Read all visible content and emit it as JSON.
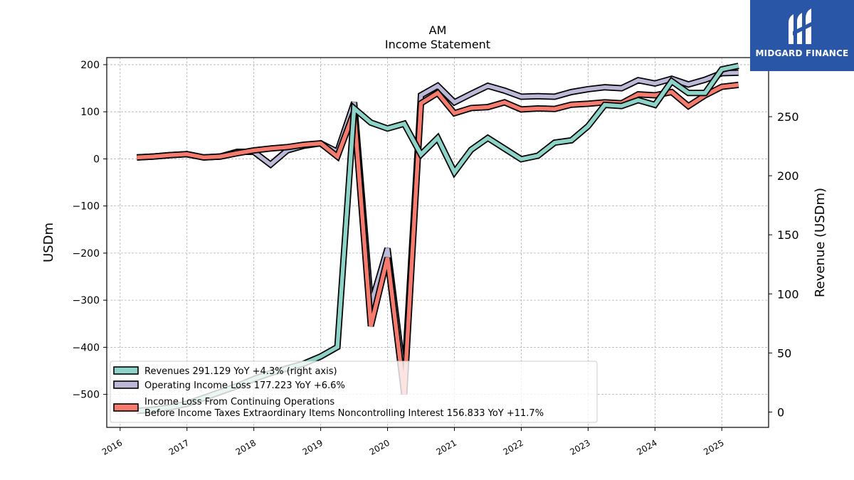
{
  "header": {
    "ticker": "AM",
    "subtitle": "Income Statement"
  },
  "logo": {
    "text": "MIDGARD FINANCE",
    "background": "#2a56a8"
  },
  "chart_data": {
    "type": "line",
    "grid": true,
    "legend_position": "bottom-left",
    "ylabel_left": "USDm",
    "ylabel_right": "Revenue (USDm)",
    "ylim_left": [
      -570,
      215
    ],
    "ylim_right": [
      -13,
      300
    ],
    "yticks_left": [
      200,
      100,
      0,
      -100,
      -200,
      -300,
      -400,
      -500
    ],
    "yticks_left_labels": [
      "200",
      "100",
      "0",
      "−100",
      "−200",
      "−300",
      "−400",
      "−500"
    ],
    "yticks_right": [
      250,
      200,
      150,
      100,
      50,
      0
    ],
    "xlim": [
      2015.8,
      2025.7
    ],
    "xticks": [
      2016,
      2017,
      2018,
      2019,
      2020,
      2021,
      2022,
      2023,
      2024,
      2025
    ],
    "x": [
      2016.25,
      2016.5,
      2016.75,
      2017.0,
      2017.25,
      2017.5,
      2017.75,
      2018.0,
      2018.25,
      2018.5,
      2018.75,
      2019.0,
      2019.25,
      2019.5,
      2019.75,
      2020.0,
      2020.25,
      2020.5,
      2020.75,
      2021.0,
      2021.25,
      2021.5,
      2021.75,
      2022.0,
      2022.25,
      2022.5,
      2022.75,
      2023.0,
      2023.25,
      2023.5,
      2023.75,
      2024.0,
      2024.25,
      2024.5,
      2024.75,
      2025.0,
      2025.25
    ],
    "series": [
      {
        "name": "Operating Income Loss  177.223 YoY +6.6%",
        "axis": "left",
        "color": "#bcb9d8",
        "values": [
          3,
          5,
          8,
          10,
          3,
          5,
          15,
          15,
          -12,
          18,
          28,
          33,
          15,
          120,
          -310,
          -190,
          -470,
          135,
          155,
          120,
          138,
          155,
          145,
          132,
          133,
          132,
          142,
          148,
          152,
          150,
          167,
          160,
          170,
          158,
          168,
          182,
          183
        ]
      },
      {
        "name": "Income Loss From Continuing Operations Before Income Taxes Extraordinary Items Noncontrolling Interest  156.833 YoY +11.7%",
        "axis": "left",
        "color": "#f47b6e",
        "values": [
          3,
          5,
          8,
          10,
          3,
          5,
          12,
          18,
          22,
          25,
          30,
          33,
          5,
          100,
          -355,
          -210,
          -500,
          118,
          140,
          97,
          108,
          110,
          120,
          105,
          107,
          106,
          115,
          117,
          120,
          118,
          137,
          135,
          142,
          112,
          135,
          153,
          157
        ]
      },
      {
        "name": "Revenues  291.129 YoY +4.3% (right axis)",
        "axis": "right",
        "color": "#8dd3c7",
        "values": [
          1,
          2,
          4,
          7,
          12,
          17,
          22,
          28,
          33,
          37,
          41,
          47,
          55,
          257,
          245,
          240,
          244,
          218,
          232,
          203,
          222,
          232,
          223,
          214,
          217,
          228,
          230,
          242,
          260,
          259,
          264,
          260,
          280,
          270,
          270,
          290,
          293
        ]
      }
    ],
    "legend": [
      {
        "label": "Revenues  291.129 YoY +4.3% (right axis)",
        "color": "#8dd3c7"
      },
      {
        "label": "Operating Income Loss  177.223 YoY +6.6%",
        "color": "#bcb9d8"
      },
      {
        "label": "Income Loss From Continuing Operations",
        "label2": "Before Income Taxes Extraordinary Items Noncontrolling Interest  156.833 YoY +11.7%",
        "color": "#f47b6e"
      }
    ]
  }
}
